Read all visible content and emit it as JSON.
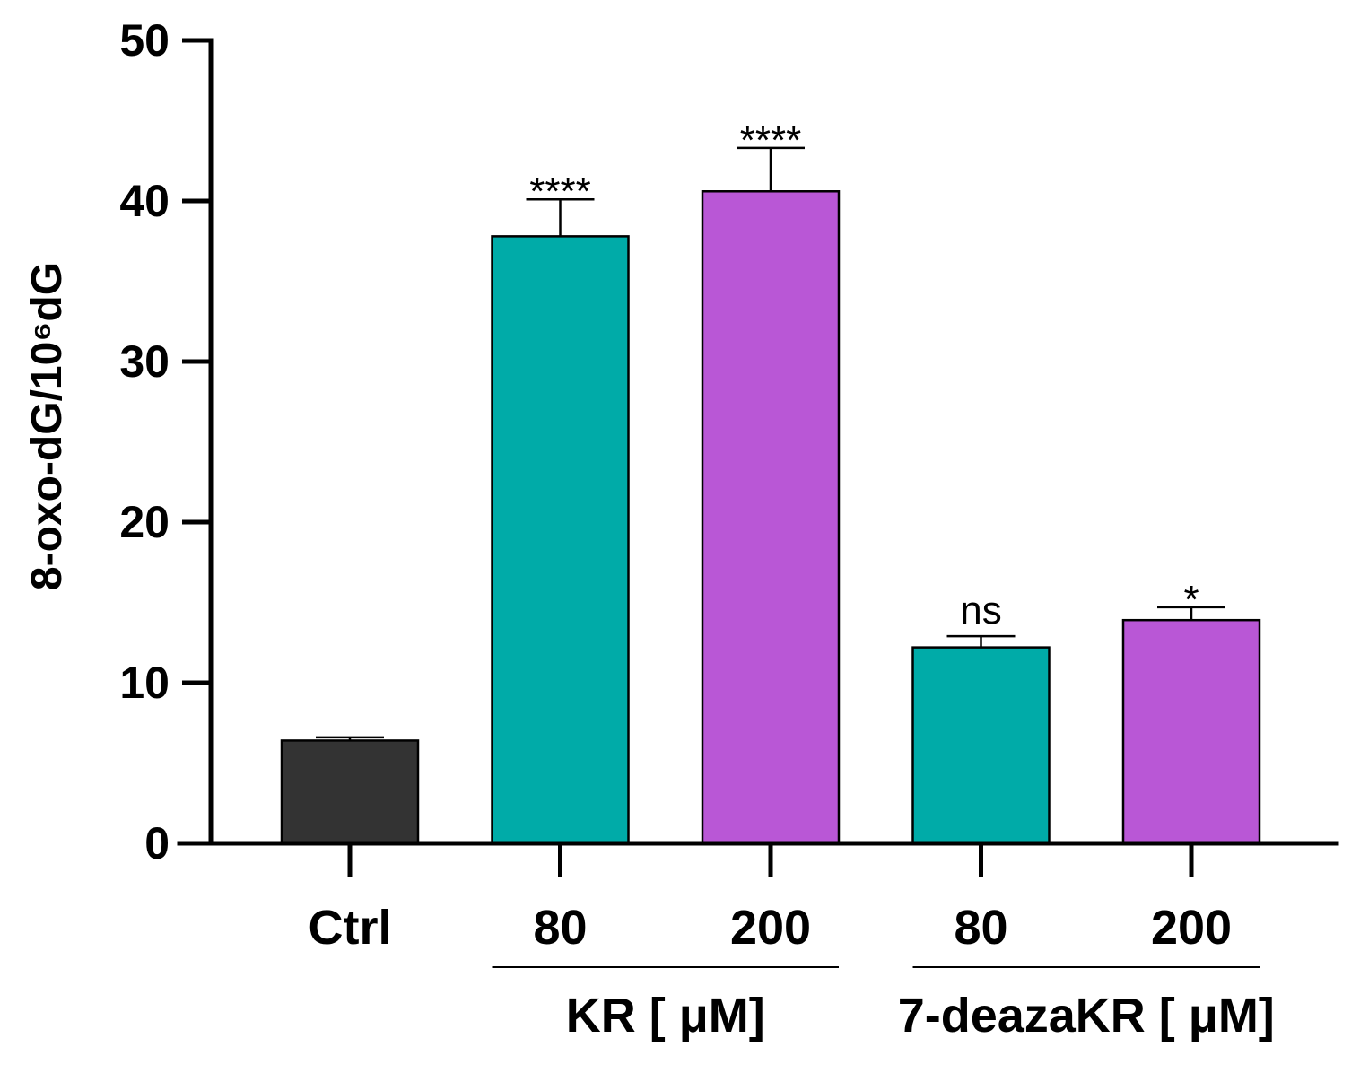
{
  "chart_data": {
    "type": "bar",
    "title": "",
    "ylabel": "8-oxo-dG/10⁶dG",
    "ylim": [
      0,
      50
    ],
    "yticks": [
      0,
      10,
      20,
      30,
      40,
      50
    ],
    "yticks_labels": [
      "0",
      "10",
      "20",
      "30",
      "40",
      "50"
    ],
    "categories": [
      "Ctrl",
      "80",
      "200",
      "80",
      "200"
    ],
    "values": [
      6.4,
      37.8,
      40.6,
      12.2,
      13.9
    ],
    "errors": [
      0.2,
      2.3,
      2.7,
      0.7,
      0.8
    ],
    "significance": [
      "",
      "****",
      "****",
      "ns",
      "*"
    ],
    "colors": [
      "#333333",
      "#00ABA8",
      "#B957D6",
      "#00ABA8",
      "#B957D6"
    ],
    "groups": [
      {
        "label": "KR [ μM]",
        "start": 1,
        "end": 2
      },
      {
        "label": "7-deazaKR [ μM]",
        "start": 3,
        "end": 4
      }
    ],
    "grid": false
  }
}
